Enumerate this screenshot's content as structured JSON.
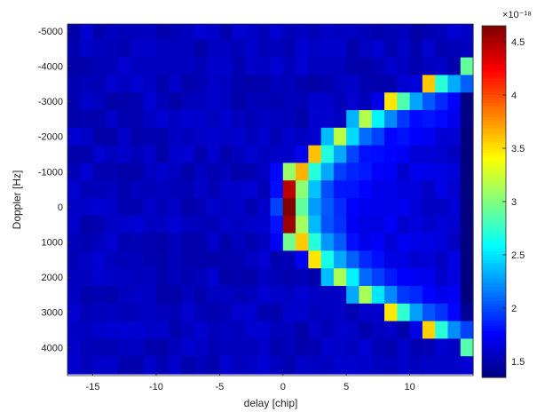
{
  "chart_data": {
    "type": "heatmap",
    "title": "",
    "xlabel": "delay [chip]",
    "ylabel": "Doppler [Hz]",
    "xlim": [
      -17,
      15
    ],
    "ylim": [
      -5200,
      4800
    ],
    "y_direction": "reversed",
    "x_ticks": [
      -15,
      -10,
      -5,
      0,
      5,
      10
    ],
    "y_ticks": [
      -5000,
      -4000,
      -3000,
      -2000,
      -1000,
      0,
      1000,
      2000,
      3000,
      4000
    ],
    "x_tick_labels": [
      "-15",
      "-10",
      "-5",
      "0",
      "5",
      "10"
    ],
    "y_tick_labels": [
      "-5000",
      "-4000",
      "-3000",
      "-2000",
      "-1000",
      "0",
      "1000",
      "2000",
      "3000",
      "4000"
    ],
    "delay_bins": [
      -16.5,
      -15.5,
      -14.5,
      -13.5,
      -12.5,
      -11.5,
      -10.5,
      -9.5,
      -8.5,
      -7.5,
      -6.5,
      -5.5,
      -4.5,
      -3.5,
      -2.5,
      -1.5,
      -0.5,
      0.5,
      1.5,
      2.5,
      3.5,
      4.5,
      5.5,
      6.5,
      7.5,
      8.5,
      9.5,
      10.5,
      11.5,
      12.5,
      13.5,
      14.5
    ],
    "doppler_bins": [
      -5000,
      -4500,
      -4000,
      -3500,
      -3000,
      -2500,
      -2000,
      -1500,
      -1000,
      -500,
      0,
      500,
      1000,
      1500,
      2000,
      2500,
      3000,
      3500,
      4000,
      4500
    ],
    "value_description": "power peaks (~4.6e-18) at delay 0-1 chip, Doppler 0 Hz, along a parabolic arc opening toward positive delay; background ~1.5e-18",
    "colorbar": {
      "colormap": "jet",
      "clim": [
        1.35,
        4.65
      ],
      "multiplier": "×10⁻¹⁸",
      "ticks": [
        1.5,
        2,
        2.5,
        3,
        3.5,
        4,
        4.5
      ],
      "tick_labels": [
        "1.5",
        "2",
        "2.5",
        "3",
        "3.5",
        "4",
        "4.5"
      ]
    }
  }
}
